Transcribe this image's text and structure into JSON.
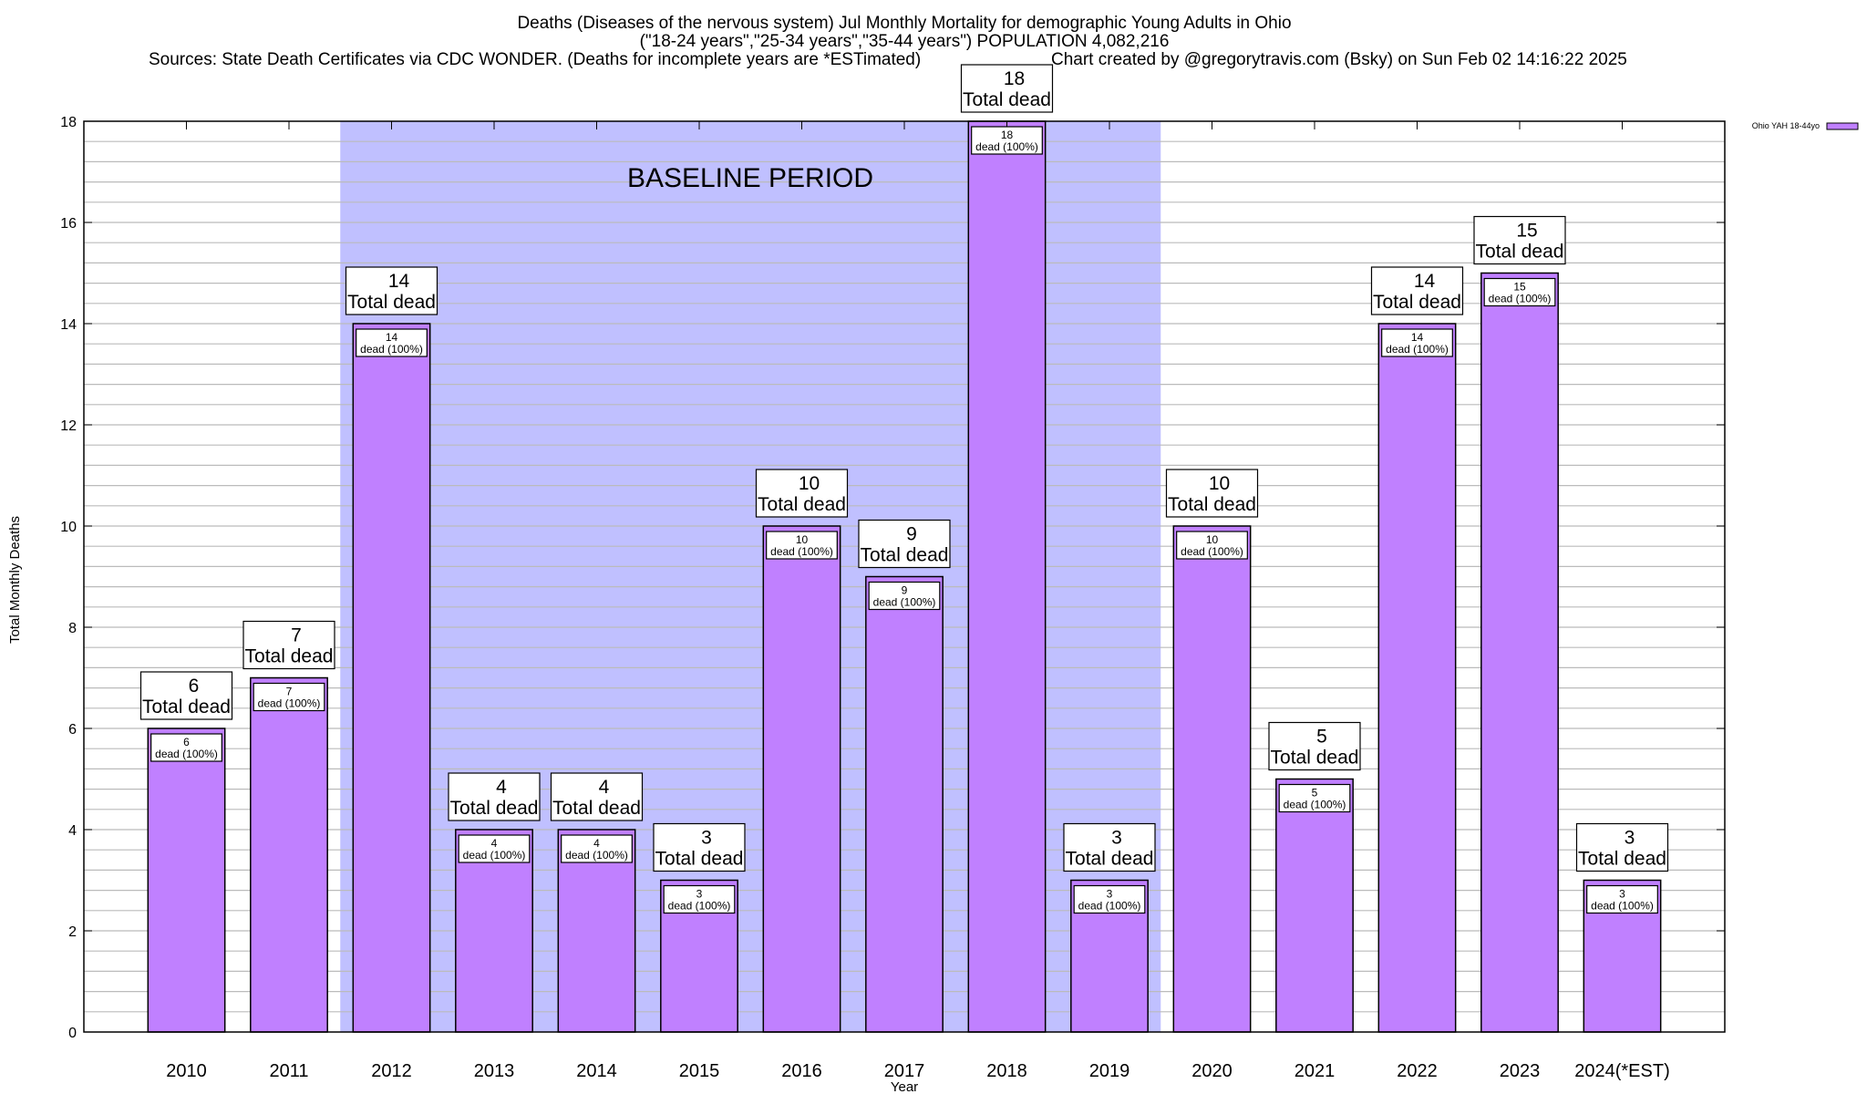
{
  "chart_data": {
    "type": "bar",
    "title_lines": [
      "Deaths (Diseases of the nervous system) Jul Monthly Mortality for demographic Young Adults in Ohio",
      "(\"18-24 years\",\"25-34 years\",\"35-44 years\") POPULATION 4,082,216"
    ],
    "sources_line": "Sources: State Death Certificates via CDC WONDER. (Deaths for incomplete years are *ESTimated)",
    "credit_line": "Chart created by @gregorytravis.com (Bsky) on Sun Feb 02 14:16:22 2025",
    "xlabel": "Year",
    "ylabel": "Total Monthly Deaths",
    "ylim": [
      0,
      18
    ],
    "yticks": [
      0,
      2,
      4,
      6,
      8,
      10,
      12,
      14,
      16,
      18
    ],
    "grid": true,
    "categories": [
      "2010",
      "2011",
      "2012",
      "2013",
      "2014",
      "2015",
      "2016",
      "2017",
      "2018",
      "2019",
      "2020",
      "2021",
      "2022",
      "2023",
      "2024(*EST)"
    ],
    "series": [
      {
        "name": "Ohio YAH 18-44yo",
        "color": "#c080ff",
        "values": [
          6,
          7,
          14,
          4,
          4,
          3,
          10,
          9,
          18,
          3,
          10,
          5,
          14,
          15,
          3
        ]
      }
    ],
    "bar_label_inner_suffix": "dead (100%)",
    "bar_label_outer_suffix": "Total dead",
    "legend_position": "top-right",
    "annotation": {
      "text": "BASELINE PERIOD",
      "start_category": "2012",
      "end_category": "2019",
      "color": "#c0c0ff"
    }
  }
}
